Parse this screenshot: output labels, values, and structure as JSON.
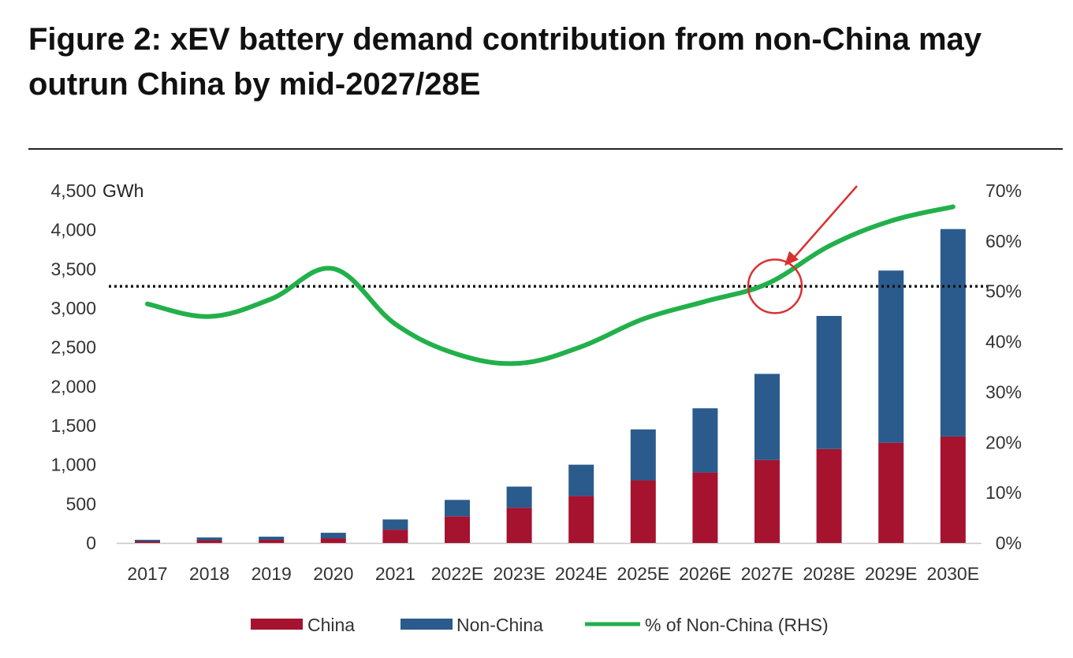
{
  "title": "Figure 2: xEV battery demand contribution from non-China may outrun China by mid-2027/28E",
  "chart_data": {
    "type": "bar",
    "stacked": true,
    "categories": [
      "2017",
      "2018",
      "2019",
      "2020",
      "2021",
      "2022E",
      "2023E",
      "2024E",
      "2025E",
      "2026E",
      "2027E",
      "2028E",
      "2029E",
      "2030E"
    ],
    "series": [
      {
        "name": "China",
        "axis": "left",
        "color": "#A5132F",
        "values": [
          20,
          35,
          40,
          60,
          170,
          340,
          450,
          600,
          800,
          900,
          1060,
          1200,
          1280,
          1360
        ]
      },
      {
        "name": "Non-China",
        "axis": "left",
        "color": "#2A5B8C",
        "values": [
          20,
          35,
          40,
          70,
          130,
          210,
          270,
          400,
          650,
          820,
          1100,
          1700,
          2200,
          2650
        ]
      },
      {
        "name": "% of Non-China  (RHS)",
        "axis": "right",
        "type": "line",
        "color": "#22B04B",
        "values": [
          47.5,
          45,
          48.5,
          54.5,
          43.5,
          37.5,
          35.7,
          39,
          44.5,
          48,
          51.5,
          59,
          64,
          66.8
        ]
      }
    ],
    "left_axis": {
      "unit": "GWh",
      "ylim": [
        0,
        4500
      ],
      "ticks": [
        "0",
        "500",
        "1,000",
        "1,500",
        "2,000",
        "2,500",
        "3,000",
        "3,500",
        "4,000",
        "4,500"
      ]
    },
    "right_axis": {
      "ylim": [
        0,
        70
      ],
      "ticks": [
        "0%",
        "10%",
        "20%",
        "30%",
        "40%",
        "50%",
        "60%",
        "70%"
      ]
    },
    "reference_line": {
      "axis": "right",
      "value": 51,
      "style": "dotted"
    },
    "annotation": {
      "type": "circle-with-arrow",
      "category": "2027E",
      "value": 51
    }
  },
  "legend": [
    {
      "label": "China",
      "color": "#A5132F",
      "kind": "bar"
    },
    {
      "label": "Non-China",
      "color": "#2A5B8C",
      "kind": "bar"
    },
    {
      "label": "% of Non-China  (RHS)",
      "color": "#22B04B",
      "kind": "line"
    }
  ]
}
